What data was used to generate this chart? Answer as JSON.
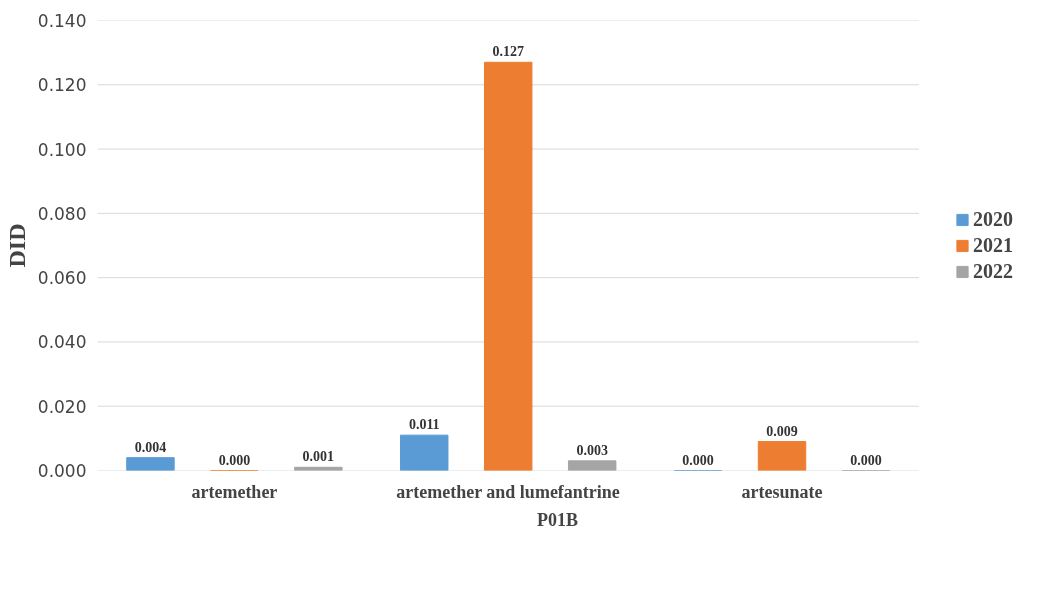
{
  "chart_data": {
    "type": "bar",
    "xlabel": "P01B",
    "ylabel": "DID",
    "categories": [
      "artemether",
      "artemether and lumefantrine",
      "artesunate"
    ],
    "series": [
      {
        "name": "2020",
        "color": "#5b9bd5",
        "values": [
          0.004,
          0.011,
          0.0
        ],
        "value_labels": [
          "0.004",
          "0.011",
          "0.000"
        ]
      },
      {
        "name": "2021",
        "color": "#ed7d31",
        "values": [
          0.0,
          0.127,
          0.009
        ],
        "value_labels": [
          "0.000",
          "0.127",
          "0.009"
        ]
      },
      {
        "name": "2022",
        "color": "#a5a5a5",
        "values": [
          0.001,
          0.003,
          0.0
        ],
        "value_labels": [
          "0.001",
          "0.003",
          "0.000"
        ]
      }
    ],
    "ylim": [
      0,
      0.14
    ],
    "yticks": [
      {
        "value": 0,
        "label": "0.000"
      },
      {
        "value": 0.02,
        "label": "0.020"
      },
      {
        "value": 0.04,
        "label": "0.040"
      },
      {
        "value": 0.06,
        "label": "0.060"
      },
      {
        "value": 0.08,
        "label": "0.080"
      },
      {
        "value": 0.1,
        "label": "0.100"
      },
      {
        "value": 0.12,
        "label": "0.120"
      },
      {
        "value": 0.14,
        "label": "0.140"
      }
    ],
    "grid": "y",
    "legend": "right"
  }
}
